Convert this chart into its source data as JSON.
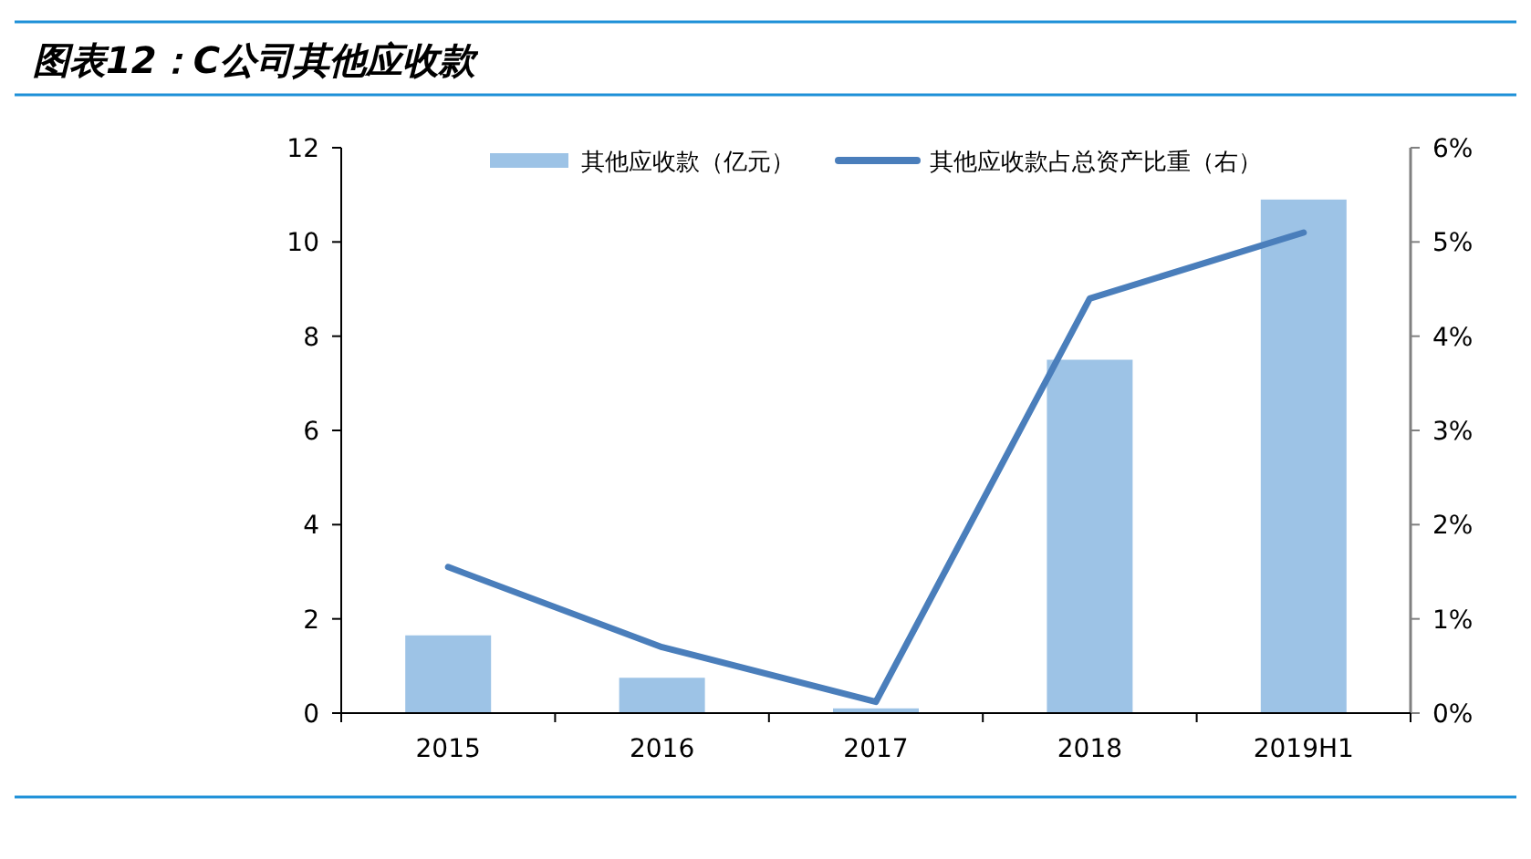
{
  "chart_data": {
    "type": "bar",
    "title": "图表12：C公司其他应收款",
    "categories": [
      "2015",
      "2016",
      "2017",
      "2018",
      "2019H1"
    ],
    "series": [
      {
        "name": "其他应收款（亿元）",
        "color": "#9dc3e6",
        "values": [
          1.65,
          0.75,
          0.1,
          7.5,
          10.9
        ]
      },
      {
        "name": "其他应收款占总资产比重（右）",
        "type": "line",
        "axis": "y2",
        "color": "#4a7ebb",
        "values": [
          1.55,
          0.7,
          0.12,
          4.4,
          5.1
        ]
      }
    ],
    "ylim": [
      0,
      12
    ],
    "yticks": [
      0,
      2,
      4,
      6,
      8,
      10,
      12
    ],
    "y2lim": [
      0,
      6
    ],
    "y2ticks": [
      {
        "value": 0,
        "label": "0%"
      },
      {
        "value": 1,
        "label": "1%"
      },
      {
        "value": 2,
        "label": "2%"
      },
      {
        "value": 3,
        "label": "3%"
      },
      {
        "value": 4,
        "label": "4%"
      },
      {
        "value": 5,
        "label": "5%"
      },
      {
        "value": 6,
        "label": "6%"
      }
    ],
    "legend": "top",
    "grid": false,
    "marker": "none",
    "line_style": "solid"
  }
}
